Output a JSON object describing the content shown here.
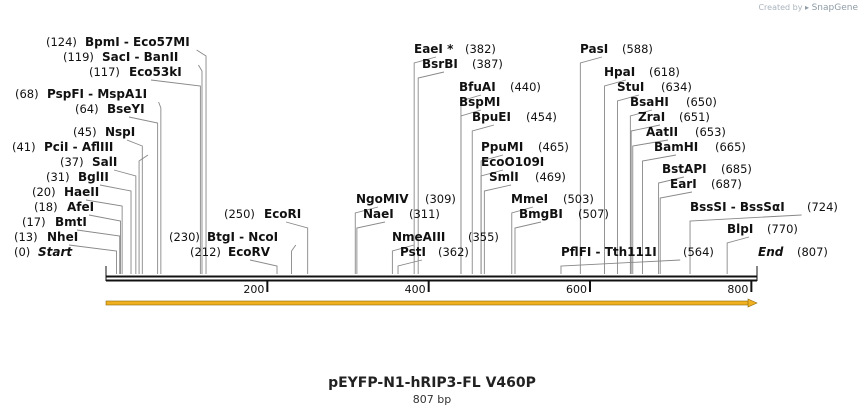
{
  "watermark": {
    "prefix": "Created by",
    "brand": "SnapGene"
  },
  "title": "pEYFP-N1-hRIP3-FL V460P",
  "length_label": "807 bp",
  "length": 807,
  "ticks": [
    {
      "value": 200,
      "label": "200"
    },
    {
      "value": 400,
      "label": "400"
    },
    {
      "value": 600,
      "label": "600"
    },
    {
      "value": 800,
      "label": "800"
    }
  ],
  "colors": {
    "arrow": "#f0b020",
    "arrow_edge": "#8a6a10",
    "line": "#888888",
    "backbone": "#111111"
  },
  "sites": [
    {
      "id": "start",
      "name": "Start",
      "pos": 0,
      "pos_label": "(0)",
      "italic": true
    },
    {
      "id": "nhei",
      "name": "NheI",
      "pos": 13,
      "pos_label": "(13)"
    },
    {
      "id": "bmti",
      "name": "BmtI",
      "pos": 17,
      "pos_label": "(17)"
    },
    {
      "id": "afei",
      "name": "AfeI",
      "pos": 18,
      "pos_label": "(18)"
    },
    {
      "id": "haeii",
      "name": "HaeII",
      "pos": 20,
      "pos_label": "(20)"
    },
    {
      "id": "bglii",
      "name": "BglII",
      "pos": 31,
      "pos_label": "(31)"
    },
    {
      "id": "sali",
      "name": "SalI",
      "pos": 37,
      "pos_label": "(37)"
    },
    {
      "id": "pcli",
      "name": "PciI",
      "partner": "AflIII",
      "pos": 41,
      "pos_label": "(41)"
    },
    {
      "id": "nspi",
      "name": "NspI",
      "pos": 45,
      "pos_label": "(45)"
    },
    {
      "id": "bseyi",
      "name": "BseYI",
      "pos": 64,
      "pos_label": "(64)"
    },
    {
      "id": "pspfi",
      "name": "PspFI",
      "partner": "MspA1I",
      "pos": 68,
      "pos_label": "(68)"
    },
    {
      "id": "eco53ki",
      "name": "Eco53kI",
      "pos": 117,
      "pos_label": "(117)"
    },
    {
      "id": "saci",
      "name": "SacI",
      "partner": "BanII",
      "pos": 119,
      "pos_label": "(119)"
    },
    {
      "id": "bpmi",
      "name": "BpmI",
      "partner": "Eco57MI",
      "pos": 124,
      "pos_label": "(124)"
    },
    {
      "id": "ecorv",
      "name": "EcoRV",
      "pos": 212,
      "pos_label": "(212)"
    },
    {
      "id": "btgi",
      "name": "BtgI",
      "partner": "NcoI",
      "pos": 230,
      "pos_label": "(230)"
    },
    {
      "id": "ecori",
      "name": "EcoRI",
      "pos": 250,
      "pos_label": "(250)"
    },
    {
      "id": "ngomiv",
      "name": "NgoMIV",
      "pos": 309,
      "pos_label": "(309)"
    },
    {
      "id": "naei",
      "name": "NaeI",
      "pos": 311,
      "pos_label": "(311)"
    },
    {
      "id": "nmeaiii",
      "name": "NmeAIII",
      "pos": 355,
      "pos_label": "(355)"
    },
    {
      "id": "psti",
      "name": "PstI",
      "pos": 362,
      "pos_label": "(362)"
    },
    {
      "id": "eaei",
      "name": "EaeI *",
      "pos": 382,
      "pos_label": "(382)"
    },
    {
      "id": "bsrbi",
      "name": "BsrBI",
      "pos": 387,
      "pos_label": "(387)"
    },
    {
      "id": "bfuai",
      "name": "BfuAI",
      "pos": 440,
      "pos_label": "(440)"
    },
    {
      "id": "bspmi",
      "name": "BspMI",
      "pos": 440
    },
    {
      "id": "bpuei",
      "name": "BpuEI",
      "pos": 454,
      "pos_label": "(454)"
    },
    {
      "id": "ppumi",
      "name": "PpuMI",
      "pos": 465,
      "pos_label": "(465)"
    },
    {
      "id": "ecoo109i",
      "name": "EcoO109I",
      "pos": 465
    },
    {
      "id": "smli",
      "name": "SmlI",
      "pos": 469,
      "pos_label": "(469)"
    },
    {
      "id": "mmei",
      "name": "MmeI",
      "pos": 503,
      "pos_label": "(503)"
    },
    {
      "id": "bmgbi",
      "name": "BmgBI",
      "pos": 507,
      "pos_label": "(507)"
    },
    {
      "id": "pflfi",
      "name": "PflFI",
      "partner": "Tth111I",
      "pos": 564,
      "pos_label": "(564)"
    },
    {
      "id": "pasi",
      "name": "PasI",
      "pos": 588,
      "pos_label": "(588)"
    },
    {
      "id": "hpai",
      "name": "HpaI",
      "pos": 618,
      "pos_label": "(618)"
    },
    {
      "id": "stui",
      "name": "StuI",
      "pos": 634,
      "pos_label": "(634)"
    },
    {
      "id": "bsahi",
      "name": "BsaHI",
      "pos": 650,
      "pos_label": "(650)"
    },
    {
      "id": "zrai",
      "name": "ZraI",
      "pos": 651,
      "pos_label": "(651)"
    },
    {
      "id": "aatii",
      "name": "AatII",
      "pos": 653,
      "pos_label": "(653)"
    },
    {
      "id": "bamhi",
      "name": "BamHI",
      "pos": 665,
      "pos_label": "(665)"
    },
    {
      "id": "bstapi",
      "name": "BstAPI",
      "pos": 685,
      "pos_label": "(685)"
    },
    {
      "id": "eari",
      "name": "EarI",
      "pos": 687,
      "pos_label": "(687)"
    },
    {
      "id": "bsssi",
      "name": "BssSI",
      "partner": "BssSαI",
      "pos": 724,
      "pos_label": "(724)"
    },
    {
      "id": "blpi",
      "name": "BlpI",
      "pos": 770,
      "pos_label": "(770)"
    },
    {
      "id": "end",
      "name": "End",
      "pos": 807,
      "pos_label": "(807)",
      "italic": true
    }
  ]
}
